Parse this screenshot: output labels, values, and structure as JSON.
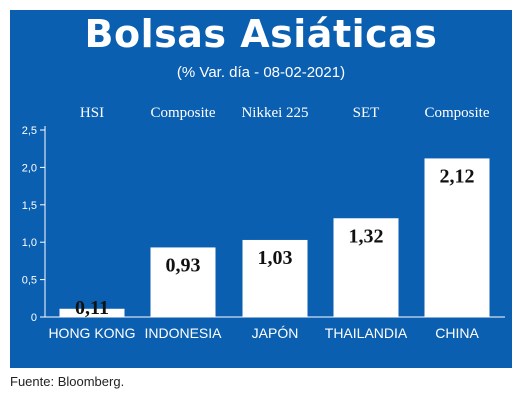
{
  "title": "Bolsas Asiáticas",
  "subtitle": "(% Var. día - 08-02-2021)",
  "source": "Fuente: Bloomberg.",
  "colors": {
    "panel": "#0b5fb0",
    "bar": "#ffffff",
    "text": "#ffffff",
    "value_text": "#111111"
  },
  "chart_data": {
    "type": "bar",
    "categories": [
      "HONG KONG",
      "INDONESIA",
      "JAPÓN",
      "THAILANDIA",
      "CHINA"
    ],
    "index_names": [
      "HSI",
      "Composite",
      "Nikkei 225",
      "SET",
      "Composite"
    ],
    "values": [
      0.11,
      0.93,
      1.03,
      1.32,
      2.12
    ],
    "value_labels": [
      "0,11",
      "0,93",
      "1,03",
      "1,32",
      "2,12"
    ],
    "yticks": [
      "0",
      "0,5",
      "1,0",
      "1,5",
      "2,0",
      "2,5"
    ],
    "ylim": [
      0,
      2.5
    ],
    "grid": false,
    "legend": "none"
  }
}
